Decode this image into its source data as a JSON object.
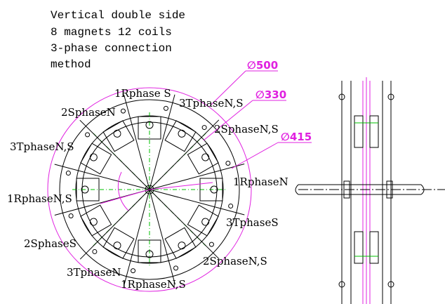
{
  "notes": [
    "Vertical double side",
    "8 magnets 12 coils",
    "3-phase connection",
    "method"
  ],
  "dimensions": [
    "∅500",
    "∅330",
    "∅415"
  ],
  "coil_labels": [
    "1Rphase S",
    "2SphaseN",
    "3TphaseN,S",
    "2SphaseN,S",
    "3TphaseN,S",
    "1RphaseN",
    "1RphaseN,S",
    "3TphaseS",
    "2SphaseS",
    "2SphaseN,S",
    "3TphaseN",
    "1RphaseN,S"
  ]
}
